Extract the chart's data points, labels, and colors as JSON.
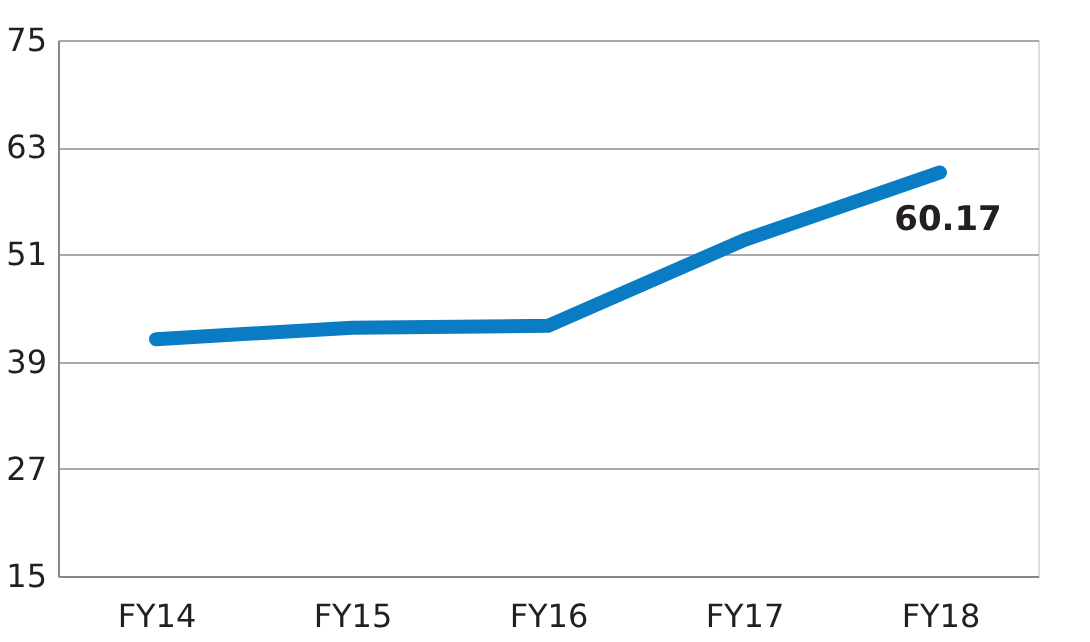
{
  "chart_data": {
    "type": "line",
    "categories": [
      "FY14",
      "FY15",
      "FY16",
      "FY17",
      "FY18"
    ],
    "series": [
      {
        "color": "#0a7cc4",
        "values": [
          41.5,
          42.8,
          43.0,
          52.6,
          60.17
        ],
        "value_labels": [
          null,
          null,
          null,
          null,
          "60.17"
        ]
      }
    ],
    "ylim": [
      15,
      75
    ],
    "yticks": [
      15,
      27,
      39,
      51,
      63,
      75
    ],
    "grid": "y",
    "line_style": "solid"
  }
}
